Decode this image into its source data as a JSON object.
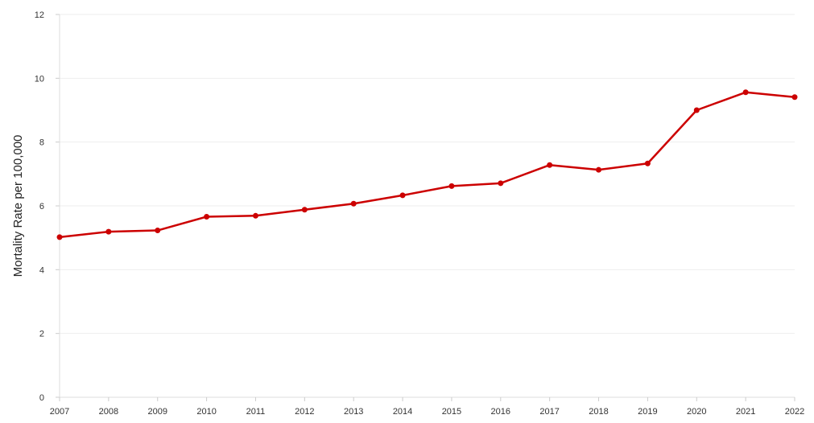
{
  "chart_data": {
    "type": "line",
    "title": "",
    "xlabel": "",
    "ylabel": "Mortality Rate per 100,000",
    "x": [
      "2007",
      "2008",
      "2009",
      "2010",
      "2011",
      "2012",
      "2013",
      "2014",
      "2015",
      "2016",
      "2017",
      "2018",
      "2019",
      "2020",
      "2021",
      "2022"
    ],
    "series": [
      {
        "values": [
          5.02,
          5.19,
          5.23,
          5.66,
          5.69,
          5.88,
          6.07,
          6.33,
          6.62,
          6.71,
          7.28,
          7.13,
          7.33,
          9.0,
          9.56,
          9.41
        ],
        "color": "#cc0000"
      }
    ],
    "ylim": [
      0,
      12
    ],
    "yticks": [
      "0",
      "2",
      "4",
      "6",
      "8",
      "10",
      "12"
    ],
    "grid": true,
    "legend": "none"
  }
}
